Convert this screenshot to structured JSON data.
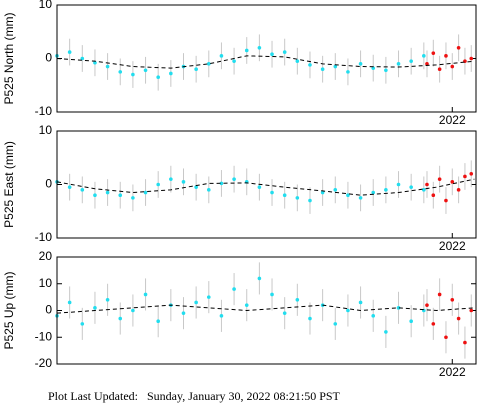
{
  "chart_data": [
    {
      "type": "scatter",
      "ylabel": "P525 North (mm)",
      "xlim": [
        2017.0,
        2022.3
      ],
      "xticks": [
        2022
      ],
      "ylim": [
        -10,
        10
      ],
      "yticks": [
        -10,
        0,
        10
      ],
      "series": [
        {
          "color": "#22ddee",
          "error": 2.5,
          "x": [
            2017.0,
            2017.16,
            2017.32,
            2017.48,
            2017.64,
            2017.8,
            2017.96,
            2018.12,
            2018.28,
            2018.44,
            2018.6,
            2018.76,
            2018.92,
            2019.08,
            2019.24,
            2019.4,
            2019.56,
            2019.72,
            2019.88,
            2020.04,
            2020.2,
            2020.36,
            2020.52,
            2020.68,
            2020.84,
            2021.0,
            2021.16,
            2021.32,
            2021.48,
            2021.64
          ],
          "values": [
            0.5,
            1.2,
            0,
            -0.8,
            -1.5,
            -2.5,
            -3,
            -2.2,
            -3.5,
            -2.8,
            -1.5,
            -2,
            -1,
            0.5,
            -0.5,
            1.5,
            2,
            0.8,
            1.2,
            -0.5,
            -1.2,
            -2,
            -1.5,
            -2.5,
            -1,
            -1.8,
            -2.2,
            -1,
            -0.5,
            0.5
          ]
        },
        {
          "color": "#ee1111",
          "error": 2.5,
          "x": [
            2021.68,
            2021.76,
            2021.84,
            2021.92,
            2022.0,
            2022.08,
            2022.16,
            2022.24
          ],
          "values": [
            -1,
            1,
            -2,
            0.5,
            -1.5,
            2,
            -0.5,
            0
          ]
        },
        {
          "color": "#000000",
          "line": true,
          "x": [
            2017.0,
            2017.48,
            2017.96,
            2018.44,
            2018.92,
            2019.4,
            2019.88,
            2020.36,
            2020.84,
            2021.32,
            2021.8,
            2022.28
          ],
          "values": [
            0,
            -0.5,
            -1.5,
            -1.8,
            -1,
            0.5,
            0.3,
            -1,
            -1.5,
            -1.6,
            -1.2,
            -0.5
          ]
        }
      ]
    },
    {
      "type": "scatter",
      "ylabel": "P525 East (mm)",
      "xlim": [
        2017.0,
        2022.3
      ],
      "xticks": [
        2022
      ],
      "ylim": [
        -10,
        10
      ],
      "yticks": [
        -10,
        0,
        10
      ],
      "series": [
        {
          "color": "#22ddee",
          "error": 2.5,
          "x": [
            2017.0,
            2017.16,
            2017.32,
            2017.48,
            2017.64,
            2017.8,
            2017.96,
            2018.12,
            2018.28,
            2018.44,
            2018.6,
            2018.76,
            2018.92,
            2019.08,
            2019.24,
            2019.4,
            2019.56,
            2019.72,
            2019.88,
            2020.04,
            2020.2,
            2020.36,
            2020.52,
            2020.68,
            2020.84,
            2021.0,
            2021.16,
            2021.32,
            2021.48,
            2021.64
          ],
          "values": [
            0.5,
            -0.5,
            -1,
            -2,
            -1.5,
            -2,
            -2.5,
            -1.5,
            0,
            1,
            0.5,
            -0.5,
            -1,
            0.2,
            1,
            0.5,
            -0.5,
            -1.5,
            -2,
            -2.5,
            -3,
            -1.5,
            -1,
            -2,
            -2.5,
            -1.5,
            -1,
            0,
            -0.5,
            -1
          ]
        },
        {
          "color": "#ee1111",
          "error": 2.5,
          "x": [
            2021.68,
            2021.76,
            2021.84,
            2021.92,
            2022.0,
            2022.08,
            2022.16,
            2022.24
          ],
          "values": [
            0,
            -2,
            1,
            -3,
            0.5,
            -1,
            1.5,
            2
          ]
        },
        {
          "color": "#000000",
          "line": true,
          "x": [
            2017.0,
            2017.48,
            2017.96,
            2018.44,
            2018.92,
            2019.4,
            2019.88,
            2020.36,
            2020.84,
            2021.32,
            2021.8,
            2022.28
          ],
          "values": [
            0.5,
            -0.8,
            -1.5,
            -1,
            0.2,
            0.3,
            -0.5,
            -1.2,
            -2,
            -1.5,
            -0.5,
            1
          ]
        }
      ]
    },
    {
      "type": "scatter",
      "ylabel": "P525 Up (mm)",
      "xlim": [
        2017.0,
        2022.3
      ],
      "xticks": [
        2022
      ],
      "ylim": [
        -20,
        20
      ],
      "yticks": [
        -20,
        -10,
        0,
        10,
        20
      ],
      "series": [
        {
          "color": "#22ddee",
          "error": 6,
          "x": [
            2017.0,
            2017.16,
            2017.32,
            2017.48,
            2017.64,
            2017.8,
            2017.96,
            2018.12,
            2018.28,
            2018.44,
            2018.6,
            2018.76,
            2018.92,
            2019.08,
            2019.24,
            2019.4,
            2019.56,
            2019.72,
            2019.88,
            2020.04,
            2020.2,
            2020.36,
            2020.52,
            2020.68,
            2020.84,
            2021.0,
            2021.16,
            2021.32,
            2021.48,
            2021.64
          ],
          "values": [
            -2,
            3,
            -5,
            1,
            4,
            -3,
            0,
            6,
            -4,
            2,
            -1,
            3,
            5,
            -2,
            8,
            2,
            12,
            6,
            -1,
            4,
            -3,
            2,
            -5,
            0,
            3,
            -2,
            -8,
            1,
            -4,
            0
          ]
        },
        {
          "color": "#ee1111",
          "error": 6,
          "x": [
            2021.68,
            2021.76,
            2021.84,
            2021.92,
            2022.0,
            2022.08,
            2022.16,
            2022.24
          ],
          "values": [
            2,
            -5,
            6,
            -10,
            4,
            -3,
            -12,
            0
          ]
        },
        {
          "color": "#000000",
          "line": true,
          "x": [
            2017.0,
            2017.48,
            2017.96,
            2018.44,
            2018.92,
            2019.4,
            2019.88,
            2020.36,
            2020.84,
            2021.32,
            2021.8,
            2022.28
          ],
          "values": [
            -1,
            0,
            1,
            2,
            1,
            0,
            1,
            2,
            0,
            1,
            0,
            1
          ]
        }
      ]
    }
  ],
  "footer": "Plot Last Updated:   Sunday, January 30, 2022 08:21:50 PST"
}
